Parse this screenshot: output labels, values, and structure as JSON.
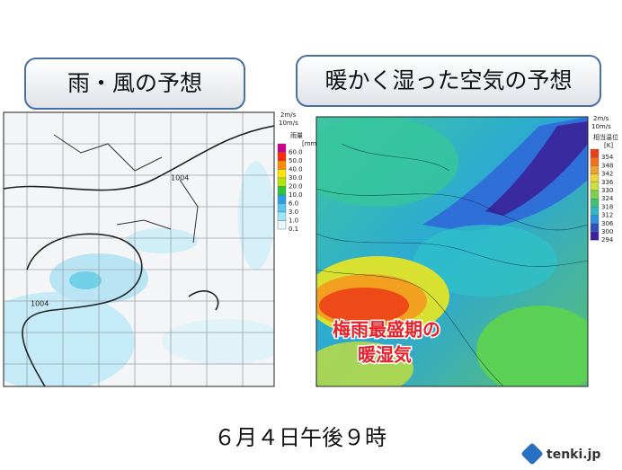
{
  "panels": [
    {
      "title": "雨・風の予想",
      "wind_scale": [
        "2m/s",
        "10m/s"
      ],
      "legend_title": "雨量",
      "legend_unit": "[mm/h]",
      "legend_values": [
        "60.0",
        "50.0",
        "40.0",
        "30.0",
        "20.0",
        "10.0",
        "6.0",
        "3.0",
        "1.0",
        "0.1"
      ],
      "contour_labels": [
        "1004",
        "1004"
      ]
    },
    {
      "title": "暖かく湿った空気の予想",
      "wind_scale": [
        "2m/s",
        "10m/s"
      ],
      "legend_title": "相当温位",
      "legend_unit": "[K]",
      "legend_values": [
        "354",
        "348",
        "342",
        "336",
        "330",
        "324",
        "318",
        "312",
        "306",
        "300",
        "294"
      ],
      "annotation": [
        "梅雨最盛期の",
        "暖湿気"
      ]
    }
  ],
  "footer": "６月４日午後９時",
  "logo": "tenki.jp"
}
